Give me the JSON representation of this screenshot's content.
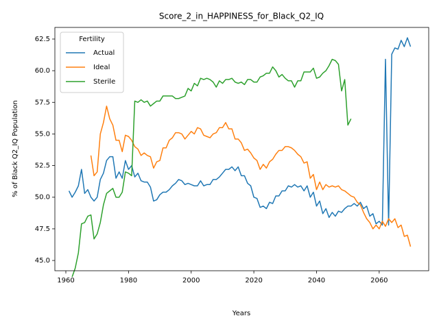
{
  "chart_data": {
    "type": "line",
    "title": "Score_2_in_HAPPINESS_for_Black_Q2_IQ",
    "xlabel": "Years",
    "ylabel": "% of Black Q2_IQ Population",
    "legend_title": "Fertility",
    "legend": "upper left",
    "x": [
      1961,
      1962,
      1963,
      1964,
      1965,
      1966,
      1967,
      1968,
      1969,
      1970,
      1971,
      1972,
      1973,
      1974,
      1975,
      1976,
      1977,
      1978,
      1979,
      1980,
      1981,
      1982,
      1983,
      1984,
      1985,
      1986,
      1987,
      1988,
      1989,
      1990,
      1991,
      1992,
      1993,
      1994,
      1995,
      1996,
      1997,
      1998,
      1999,
      2000,
      2001,
      2002,
      2003,
      2004,
      2005,
      2006,
      2007,
      2008,
      2009,
      2010,
      2011,
      2012,
      2013,
      2014,
      2015,
      2016,
      2017,
      2018,
      2019,
      2020,
      2021,
      2022,
      2023,
      2024,
      2025,
      2026,
      2027,
      2028,
      2029,
      2030,
      2031,
      2032,
      2033,
      2034,
      2035,
      2036,
      2037,
      2038,
      2039,
      2040,
      2041,
      2042,
      2043,
      2044,
      2045,
      2046,
      2047,
      2048,
      2049,
      2050,
      2051,
      2052,
      2053,
      2054,
      2055,
      2056,
      2057,
      2058,
      2059,
      2060,
      2061,
      2062,
      2063,
      2064,
      2065,
      2066,
      2067,
      2068,
      2069,
      2070
    ],
    "series": [
      {
        "name": "Actual",
        "color": "#1f77b4",
        "values": [
          50.5,
          50.0,
          50.4,
          50.9,
          52.2,
          50.3,
          50.6,
          50.0,
          49.7,
          50.0,
          51.4,
          51.9,
          52.9,
          53.2,
          53.2,
          51.5,
          52.0,
          51.5,
          52.9,
          52.2,
          52.5,
          51.6,
          51.9,
          51.3,
          51.2,
          51.2,
          50.8,
          49.7,
          49.8,
          50.2,
          50.4,
          50.4,
          50.6,
          50.9,
          51.1,
          51.4,
          51.3,
          51.0,
          51.1,
          51.0,
          50.9,
          50.9,
          51.3,
          50.9,
          51.0,
          51.0,
          51.4,
          51.4,
          51.6,
          51.9,
          52.2,
          52.2,
          52.4,
          52.1,
          52.4,
          51.7,
          51.7,
          51.1,
          50.9,
          50.0,
          49.9,
          49.2,
          49.3,
          49.1,
          49.6,
          49.5,
          50.1,
          50.1,
          50.5,
          50.5,
          50.9,
          50.8,
          51.0,
          50.8,
          50.9,
          50.5,
          50.9,
          50.0,
          50.4,
          49.3,
          49.7,
          48.7,
          49.1,
          48.4,
          48.8,
          48.5,
          48.9,
          48.8,
          49.1,
          49.3,
          49.3,
          49.5,
          49.3,
          49.6,
          49.1,
          49.3,
          48.5,
          48.7,
          47.9,
          48.1,
          47.8,
          60.9,
          47.8,
          61.3,
          61.8,
          61.7,
          62.4,
          61.9,
          62.6,
          61.9
        ]
      },
      {
        "name": "Ideal",
        "color": "#ff7f0e",
        "values": [
          null,
          null,
          null,
          null,
          null,
          null,
          null,
          53.3,
          51.7,
          52.0,
          55.0,
          55.9,
          57.2,
          56.2,
          55.7,
          54.5,
          54.5,
          53.6,
          54.9,
          54.8,
          54.5,
          54.0,
          53.8,
          53.3,
          53.5,
          53.3,
          53.2,
          52.3,
          52.8,
          52.9,
          53.9,
          53.9,
          54.5,
          54.7,
          55.1,
          55.1,
          55.0,
          54.6,
          54.9,
          55.2,
          55.0,
          55.5,
          55.4,
          54.9,
          54.8,
          54.7,
          55.0,
          55.1,
          55.5,
          55.5,
          55.9,
          55.4,
          55.4,
          54.6,
          54.6,
          54.3,
          53.7,
          53.8,
          53.5,
          53.1,
          52.9,
          52.2,
          52.6,
          52.3,
          52.8,
          53.0,
          53.4,
          53.7,
          53.7,
          54.0,
          54.0,
          53.9,
          53.7,
          53.4,
          53.2,
          52.7,
          52.8,
          51.5,
          51.8,
          50.6,
          51.2,
          50.6,
          51.0,
          50.8,
          50.9,
          50.8,
          50.9,
          50.6,
          50.5,
          50.3,
          50.1,
          50.0,
          49.6,
          49.4,
          48.8,
          48.3,
          48.0,
          47.5,
          47.8,
          47.5,
          48.1,
          47.7,
          48.3,
          48.0,
          48.3,
          47.6,
          47.8,
          46.9,
          47.0,
          46.1
        ]
      },
      {
        "name": "Sterile",
        "color": "#2ca02c",
        "values": [
          null,
          43.7,
          44.4,
          45.6,
          47.9,
          48.0,
          48.5,
          48.6,
          46.7,
          47.1,
          48.0,
          49.4,
          50.3,
          50.5,
          50.7,
          50.0,
          50.0,
          50.4,
          52.0,
          51.9,
          51.7,
          57.6,
          57.5,
          57.7,
          57.5,
          57.6,
          57.2,
          57.4,
          57.6,
          57.6,
          58.0,
          58.0,
          58.0,
          58.0,
          57.8,
          57.8,
          57.9,
          58.0,
          58.6,
          58.4,
          59.0,
          58.8,
          59.4,
          59.3,
          59.4,
          59.3,
          59.1,
          58.7,
          59.2,
          59.0,
          59.3,
          59.3,
          59.4,
          59.1,
          59.0,
          59.1,
          58.9,
          59.3,
          59.3,
          59.1,
          59.1,
          59.5,
          59.6,
          59.8,
          59.8,
          60.3,
          60.0,
          59.5,
          59.7,
          59.4,
          59.2,
          59.2,
          58.7,
          59.2,
          59.2,
          59.9,
          59.9,
          59.9,
          60.2,
          59.4,
          59.5,
          59.8,
          60.0,
          60.4,
          60.9,
          60.8,
          60.5,
          58.4,
          59.3,
          55.7,
          56.2,
          null,
          null,
          null,
          null,
          null,
          null,
          null,
          null,
          null,
          null,
          null,
          null,
          null,
          null,
          null,
          null,
          null,
          null,
          null
        ]
      }
    ],
    "xlim": [
      1956.5,
      2075.8
    ],
    "ylim": [
      44.19,
      63.42
    ],
    "xticks": [
      1960,
      1980,
      2000,
      2020,
      2040,
      2060
    ],
    "yticks": [
      {
        "value": 45,
        "label": "45.0"
      },
      47.5,
      {
        "value": 50,
        "label": "50.0"
      },
      52.5,
      {
        "value": 55,
        "label": "55.0"
      },
      57.5,
      {
        "value": 60,
        "label": "60.0"
      },
      62.5
    ]
  }
}
